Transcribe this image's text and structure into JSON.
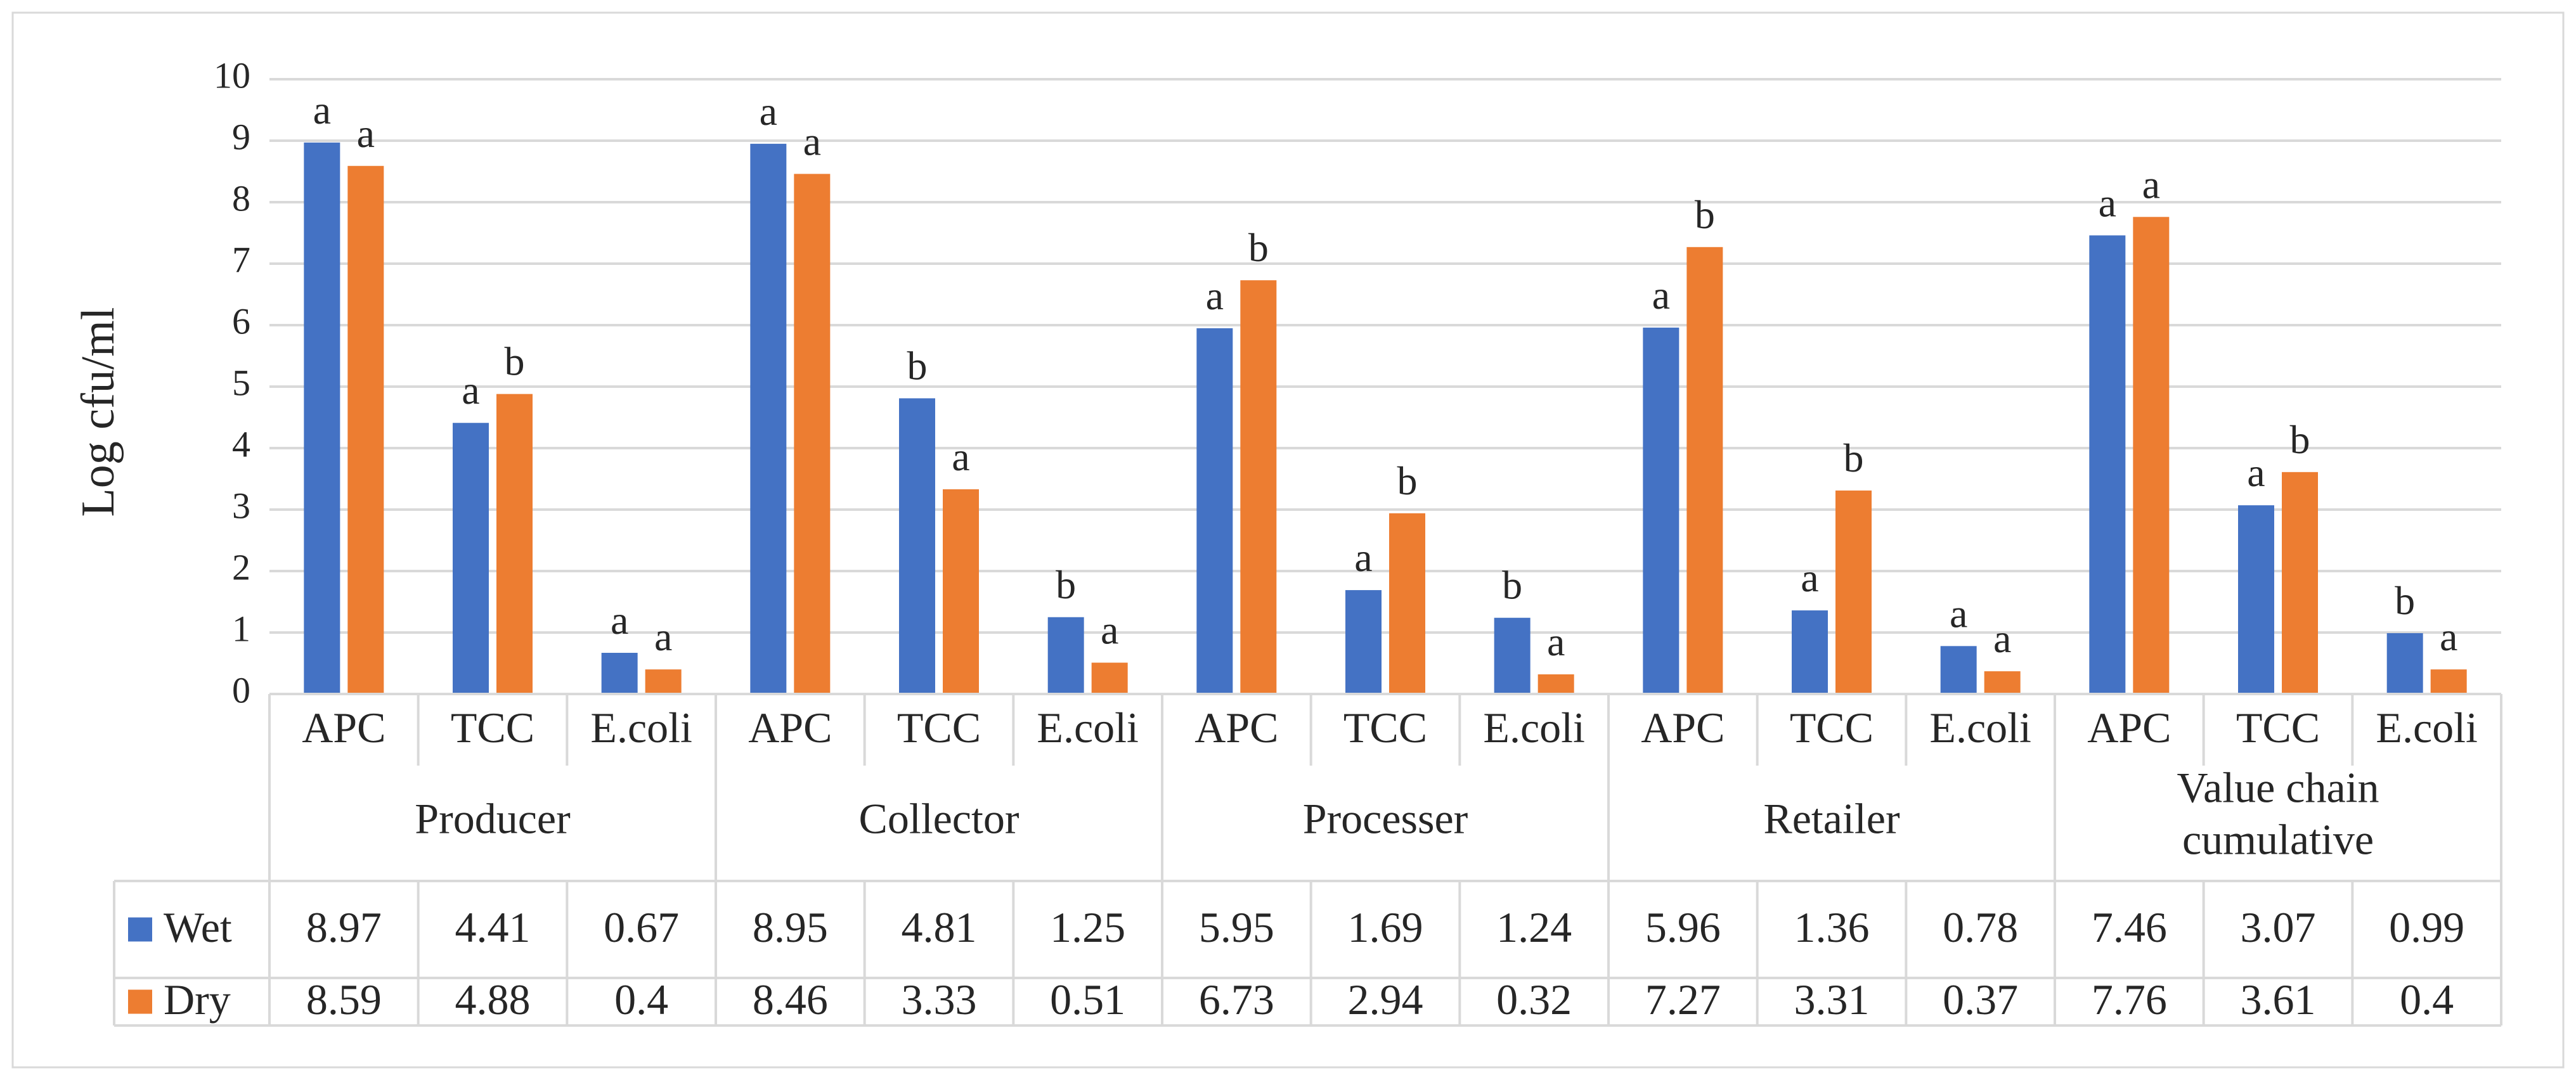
{
  "chart_data": {
    "type": "bar",
    "title": "",
    "ylabel": "Log cfu/ml",
    "xlabel": "",
    "ylim": [
      0,
      10
    ],
    "yticks": [
      0,
      1,
      2,
      3,
      4,
      5,
      6,
      7,
      8,
      9,
      10
    ],
    "grid": true,
    "legend_position": "bottom-left (data table)",
    "groups": [
      {
        "label": "Producer",
        "label_lines": [
          "Producer"
        ],
        "categories": [
          "APC",
          "TCC",
          "E.coli"
        ]
      },
      {
        "label": "Collector",
        "label_lines": [
          "Collector"
        ],
        "categories": [
          "APC",
          "TCC",
          "E.coli"
        ]
      },
      {
        "label": "Processer",
        "label_lines": [
          "Processer"
        ],
        "categories": [
          "APC",
          "TCC",
          "E.coli"
        ]
      },
      {
        "label": "Retailer",
        "label_lines": [
          "Retailer"
        ],
        "categories": [
          "APC",
          "TCC",
          "E.coli"
        ]
      },
      {
        "label": "Value chain cumulative",
        "label_lines": [
          "Value chain",
          "cumulative"
        ],
        "categories": [
          "APC",
          "TCC",
          "E.coli"
        ]
      }
    ],
    "series": [
      {
        "name": "Wet",
        "color": "#4472c4",
        "values": [
          8.97,
          4.41,
          0.67,
          8.95,
          4.81,
          1.25,
          5.95,
          1.69,
          1.24,
          5.96,
          1.36,
          0.78,
          7.46,
          3.07,
          0.99
        ],
        "value_labels": [
          "8.97",
          "4.41",
          "0.67",
          "8.95",
          "4.81",
          "1.25",
          "5.95",
          "1.69",
          "1.24",
          "5.96",
          "1.36",
          "0.78",
          "7.46",
          "3.07",
          "0.99"
        ],
        "significance": [
          "a",
          "a",
          "a",
          "a",
          "b",
          "b",
          "a",
          "a",
          "b",
          "a",
          "a",
          "a",
          "a",
          "a",
          "b"
        ]
      },
      {
        "name": "Dry",
        "color": "#ed7d31",
        "values": [
          8.59,
          4.88,
          0.4,
          8.46,
          3.33,
          0.51,
          6.73,
          2.94,
          0.32,
          7.27,
          3.31,
          0.37,
          7.76,
          3.61,
          0.4
        ],
        "value_labels": [
          "8.59",
          "4.88",
          "0.4",
          "8.46",
          "3.33",
          "0.51",
          "6.73",
          "2.94",
          "0.32",
          "7.27",
          "3.31",
          "0.37",
          "7.76",
          "3.61",
          "0.4"
        ],
        "significance": [
          "a",
          "b",
          "a",
          "a",
          "a",
          "a",
          "b",
          "b",
          "a",
          "b",
          "b",
          "a",
          "a",
          "b",
          "a"
        ]
      }
    ]
  }
}
